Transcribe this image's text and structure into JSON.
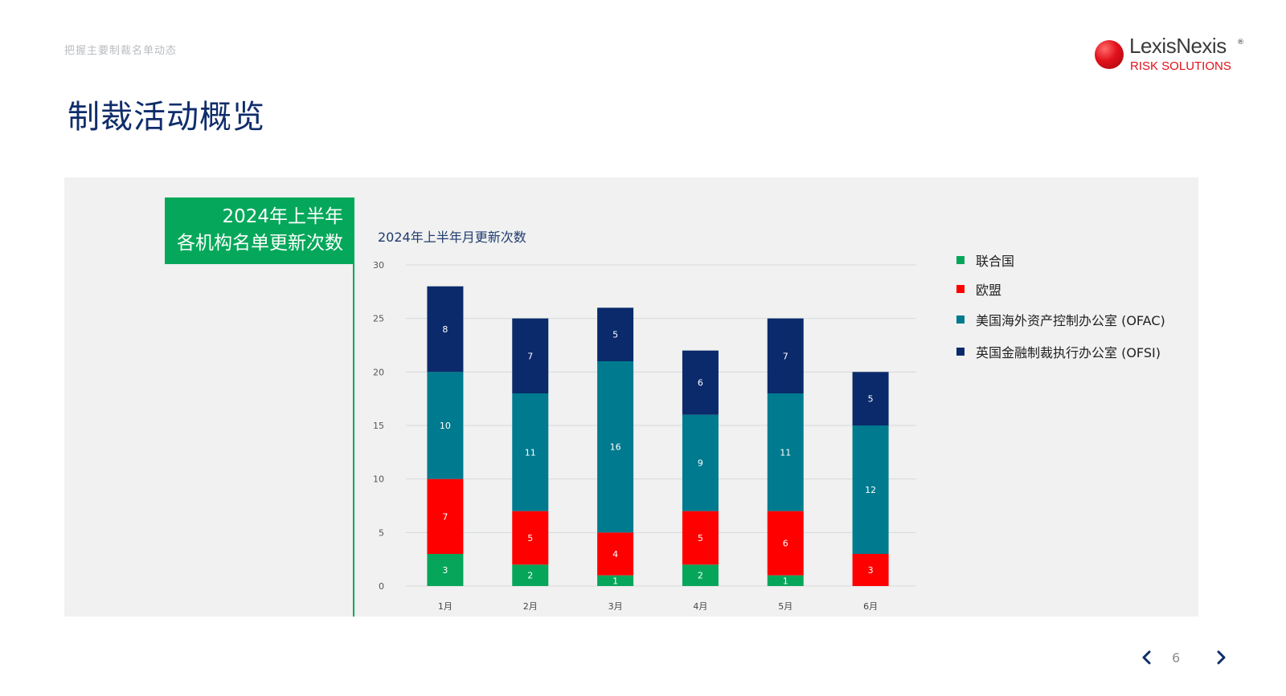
{
  "breadcrumb": "把握主要制裁名单动态",
  "logo": {
    "name": "LexisNexis",
    "reg": "®",
    "sub": "RISK SOLUTIONS"
  },
  "title": "制裁活动概览",
  "side_label": {
    "line1": "2024年上半年",
    "line2": "各机构名单更新次数"
  },
  "colors": {
    "un": "#06a65a",
    "eu": "#ff0000",
    "ofac": "#007a8e",
    "ofsi": "#0a2a6b",
    "accent_green": "#05a85a",
    "title_navy": "#0f2d6b"
  },
  "chart_data": {
    "type": "bar",
    "stacked": true,
    "title": "2024年上半年月更新次数",
    "categories": [
      "1月",
      "2月",
      "3月",
      "4月",
      "5月",
      "6月"
    ],
    "series": [
      {
        "name": "联合国",
        "color": "#06a65a",
        "values": [
          3,
          2,
          1,
          2,
          1,
          0
        ]
      },
      {
        "name": "欧盟",
        "color": "#ff0000",
        "values": [
          7,
          5,
          4,
          5,
          6,
          3
        ]
      },
      {
        "name": "美国海外资产控制办公室 (OFAC)",
        "color": "#007a8e",
        "values": [
          10,
          11,
          16,
          9,
          11,
          12
        ]
      },
      {
        "name": "英国金融制裁执行办公室 (OFSI)",
        "color": "#0a2a6b",
        "values": [
          8,
          7,
          5,
          6,
          7,
          5
        ]
      }
    ],
    "ylim": [
      0,
      30
    ],
    "yticks": [
      0,
      5,
      10,
      15,
      20,
      25,
      30
    ],
    "grid": true,
    "legend_position": "right"
  },
  "pagination": {
    "page": "6"
  }
}
